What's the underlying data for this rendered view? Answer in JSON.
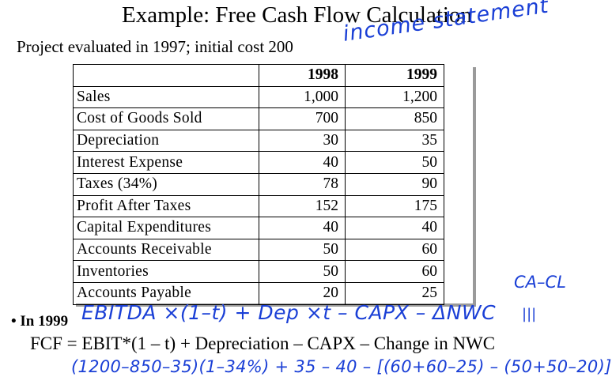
{
  "title": "Example: Free Cash Flow Calculation",
  "subtitle": "Project evaluated in 1997; initial cost 200",
  "table": {
    "headers": [
      "",
      "1998",
      "1999"
    ],
    "rows": [
      {
        "label": "Sales",
        "y1998": "1,000",
        "y1999": "1,200"
      },
      {
        "label": "Cost of Goods Sold",
        "y1998": "700",
        "y1999": "850"
      },
      {
        "label": "Depreciation",
        "y1998": "30",
        "y1999": "35"
      },
      {
        "label": "Interest Expense",
        "y1998": "40",
        "y1999": "50"
      },
      {
        "label": "Taxes (34%)",
        "y1998": "78",
        "y1999": "90"
      },
      {
        "label": "Profit After Taxes",
        "y1998": "152",
        "y1999": "175"
      },
      {
        "label": "Capital Expenditures",
        "y1998": "40",
        "y1999": "40"
      },
      {
        "label": "Accounts Receivable",
        "y1998": "50",
        "y1999": "60"
      },
      {
        "label": "Inventories",
        "y1998": "50",
        "y1999": "60"
      },
      {
        "label": "Accounts Payable",
        "y1998": "20",
        "y1999": "25"
      }
    ]
  },
  "bullet": "• In 1999",
  "formula": "FCF = EBIT*(1 – t) + Depreciation – CAPX – Change in NWC",
  "handwriting": {
    "income_statement": "income statement",
    "ca_cl": "CA–CL",
    "equiv": "|||",
    "ebitda_formula": "EBITDA ×(1–t) + Dep ×t – CAPX – ΔNWC",
    "calculation": "(1200–850–35)(1–34%) + 35 – 40 – [(60+60–25) – (50+50–20)]"
  },
  "colors": {
    "ink": "#1a3fd6",
    "text": "#000000",
    "shadow": "#9a9a9a"
  }
}
